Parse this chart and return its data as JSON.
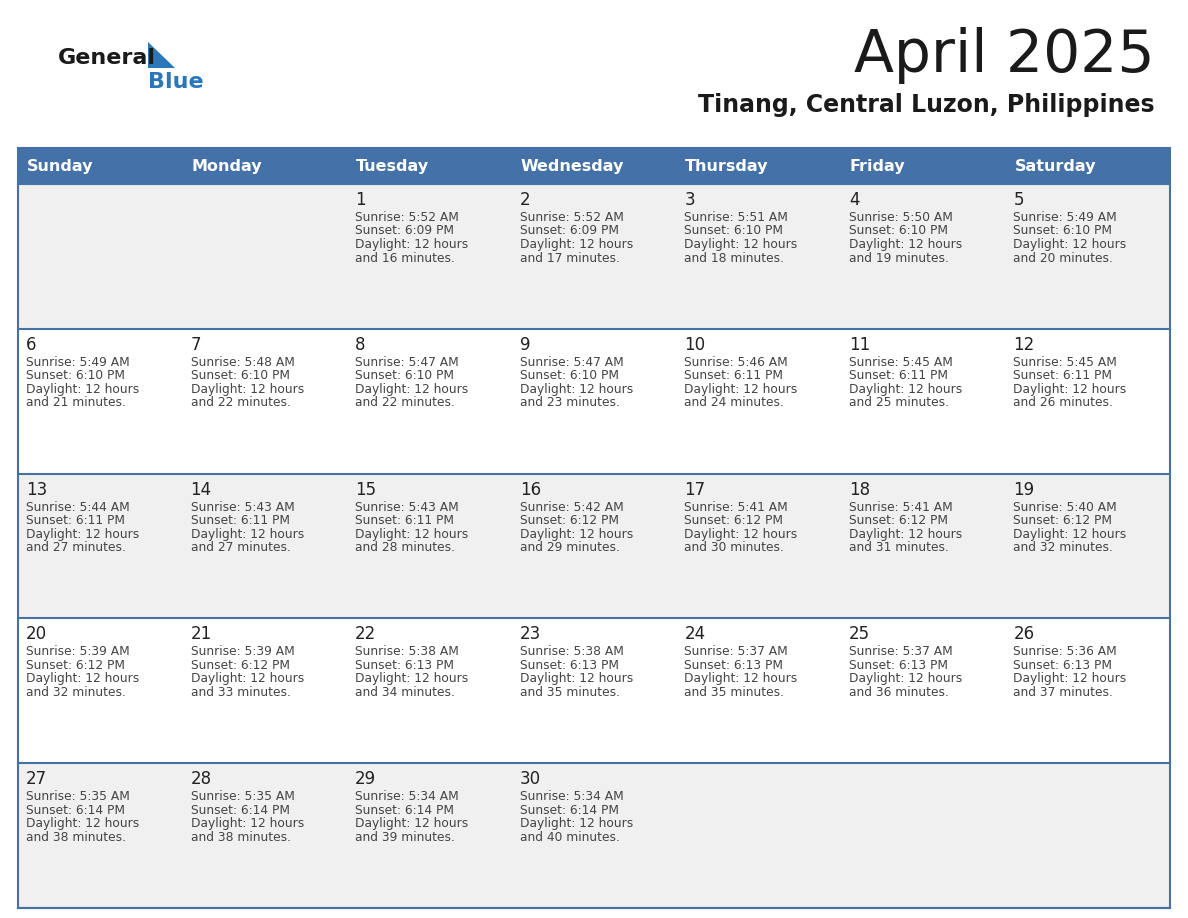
{
  "title": "April 2025",
  "subtitle": "Tinang, Central Luzon, Philippines",
  "days_of_week": [
    "Sunday",
    "Monday",
    "Tuesday",
    "Wednesday",
    "Thursday",
    "Friday",
    "Saturday"
  ],
  "header_bg": "#4472a8",
  "header_text": "#ffffff",
  "row_bgs": [
    "#f0f0f0",
    "#ffffff",
    "#f0f0f0",
    "#ffffff",
    "#f0f0f0"
  ],
  "line_color": "#4472a8",
  "day_num_color": "#222222",
  "cell_text_color": "#444444",
  "title_color": "#1a1a1a",
  "subtitle_color": "#1a1a1a",
  "logo_general_color": "#1a1a1a",
  "logo_blue_color": "#2b77b8",
  "logo_triangle_color": "#2b77b8",
  "calendar_data": [
    [
      {
        "day": null,
        "info": null
      },
      {
        "day": null,
        "info": null
      },
      {
        "day": 1,
        "info": "Sunrise: 5:52 AM\nSunset: 6:09 PM\nDaylight: 12 hours\nand 16 minutes."
      },
      {
        "day": 2,
        "info": "Sunrise: 5:52 AM\nSunset: 6:09 PM\nDaylight: 12 hours\nand 17 minutes."
      },
      {
        "day": 3,
        "info": "Sunrise: 5:51 AM\nSunset: 6:10 PM\nDaylight: 12 hours\nand 18 minutes."
      },
      {
        "day": 4,
        "info": "Sunrise: 5:50 AM\nSunset: 6:10 PM\nDaylight: 12 hours\nand 19 minutes."
      },
      {
        "day": 5,
        "info": "Sunrise: 5:49 AM\nSunset: 6:10 PM\nDaylight: 12 hours\nand 20 minutes."
      }
    ],
    [
      {
        "day": 6,
        "info": "Sunrise: 5:49 AM\nSunset: 6:10 PM\nDaylight: 12 hours\nand 21 minutes."
      },
      {
        "day": 7,
        "info": "Sunrise: 5:48 AM\nSunset: 6:10 PM\nDaylight: 12 hours\nand 22 minutes."
      },
      {
        "day": 8,
        "info": "Sunrise: 5:47 AM\nSunset: 6:10 PM\nDaylight: 12 hours\nand 22 minutes."
      },
      {
        "day": 9,
        "info": "Sunrise: 5:47 AM\nSunset: 6:10 PM\nDaylight: 12 hours\nand 23 minutes."
      },
      {
        "day": 10,
        "info": "Sunrise: 5:46 AM\nSunset: 6:11 PM\nDaylight: 12 hours\nand 24 minutes."
      },
      {
        "day": 11,
        "info": "Sunrise: 5:45 AM\nSunset: 6:11 PM\nDaylight: 12 hours\nand 25 minutes."
      },
      {
        "day": 12,
        "info": "Sunrise: 5:45 AM\nSunset: 6:11 PM\nDaylight: 12 hours\nand 26 minutes."
      }
    ],
    [
      {
        "day": 13,
        "info": "Sunrise: 5:44 AM\nSunset: 6:11 PM\nDaylight: 12 hours\nand 27 minutes."
      },
      {
        "day": 14,
        "info": "Sunrise: 5:43 AM\nSunset: 6:11 PM\nDaylight: 12 hours\nand 27 minutes."
      },
      {
        "day": 15,
        "info": "Sunrise: 5:43 AM\nSunset: 6:11 PM\nDaylight: 12 hours\nand 28 minutes."
      },
      {
        "day": 16,
        "info": "Sunrise: 5:42 AM\nSunset: 6:12 PM\nDaylight: 12 hours\nand 29 minutes."
      },
      {
        "day": 17,
        "info": "Sunrise: 5:41 AM\nSunset: 6:12 PM\nDaylight: 12 hours\nand 30 minutes."
      },
      {
        "day": 18,
        "info": "Sunrise: 5:41 AM\nSunset: 6:12 PM\nDaylight: 12 hours\nand 31 minutes."
      },
      {
        "day": 19,
        "info": "Sunrise: 5:40 AM\nSunset: 6:12 PM\nDaylight: 12 hours\nand 32 minutes."
      }
    ],
    [
      {
        "day": 20,
        "info": "Sunrise: 5:39 AM\nSunset: 6:12 PM\nDaylight: 12 hours\nand 32 minutes."
      },
      {
        "day": 21,
        "info": "Sunrise: 5:39 AM\nSunset: 6:12 PM\nDaylight: 12 hours\nand 33 minutes."
      },
      {
        "day": 22,
        "info": "Sunrise: 5:38 AM\nSunset: 6:13 PM\nDaylight: 12 hours\nand 34 minutes."
      },
      {
        "day": 23,
        "info": "Sunrise: 5:38 AM\nSunset: 6:13 PM\nDaylight: 12 hours\nand 35 minutes."
      },
      {
        "day": 24,
        "info": "Sunrise: 5:37 AM\nSunset: 6:13 PM\nDaylight: 12 hours\nand 35 minutes."
      },
      {
        "day": 25,
        "info": "Sunrise: 5:37 AM\nSunset: 6:13 PM\nDaylight: 12 hours\nand 36 minutes."
      },
      {
        "day": 26,
        "info": "Sunrise: 5:36 AM\nSunset: 6:13 PM\nDaylight: 12 hours\nand 37 minutes."
      }
    ],
    [
      {
        "day": 27,
        "info": "Sunrise: 5:35 AM\nSunset: 6:14 PM\nDaylight: 12 hours\nand 38 minutes."
      },
      {
        "day": 28,
        "info": "Sunrise: 5:35 AM\nSunset: 6:14 PM\nDaylight: 12 hours\nand 38 minutes."
      },
      {
        "day": 29,
        "info": "Sunrise: 5:34 AM\nSunset: 6:14 PM\nDaylight: 12 hours\nand 39 minutes."
      },
      {
        "day": 30,
        "info": "Sunrise: 5:34 AM\nSunset: 6:14 PM\nDaylight: 12 hours\nand 40 minutes."
      },
      {
        "day": null,
        "info": null
      },
      {
        "day": null,
        "info": null
      },
      {
        "day": null,
        "info": null
      }
    ]
  ]
}
